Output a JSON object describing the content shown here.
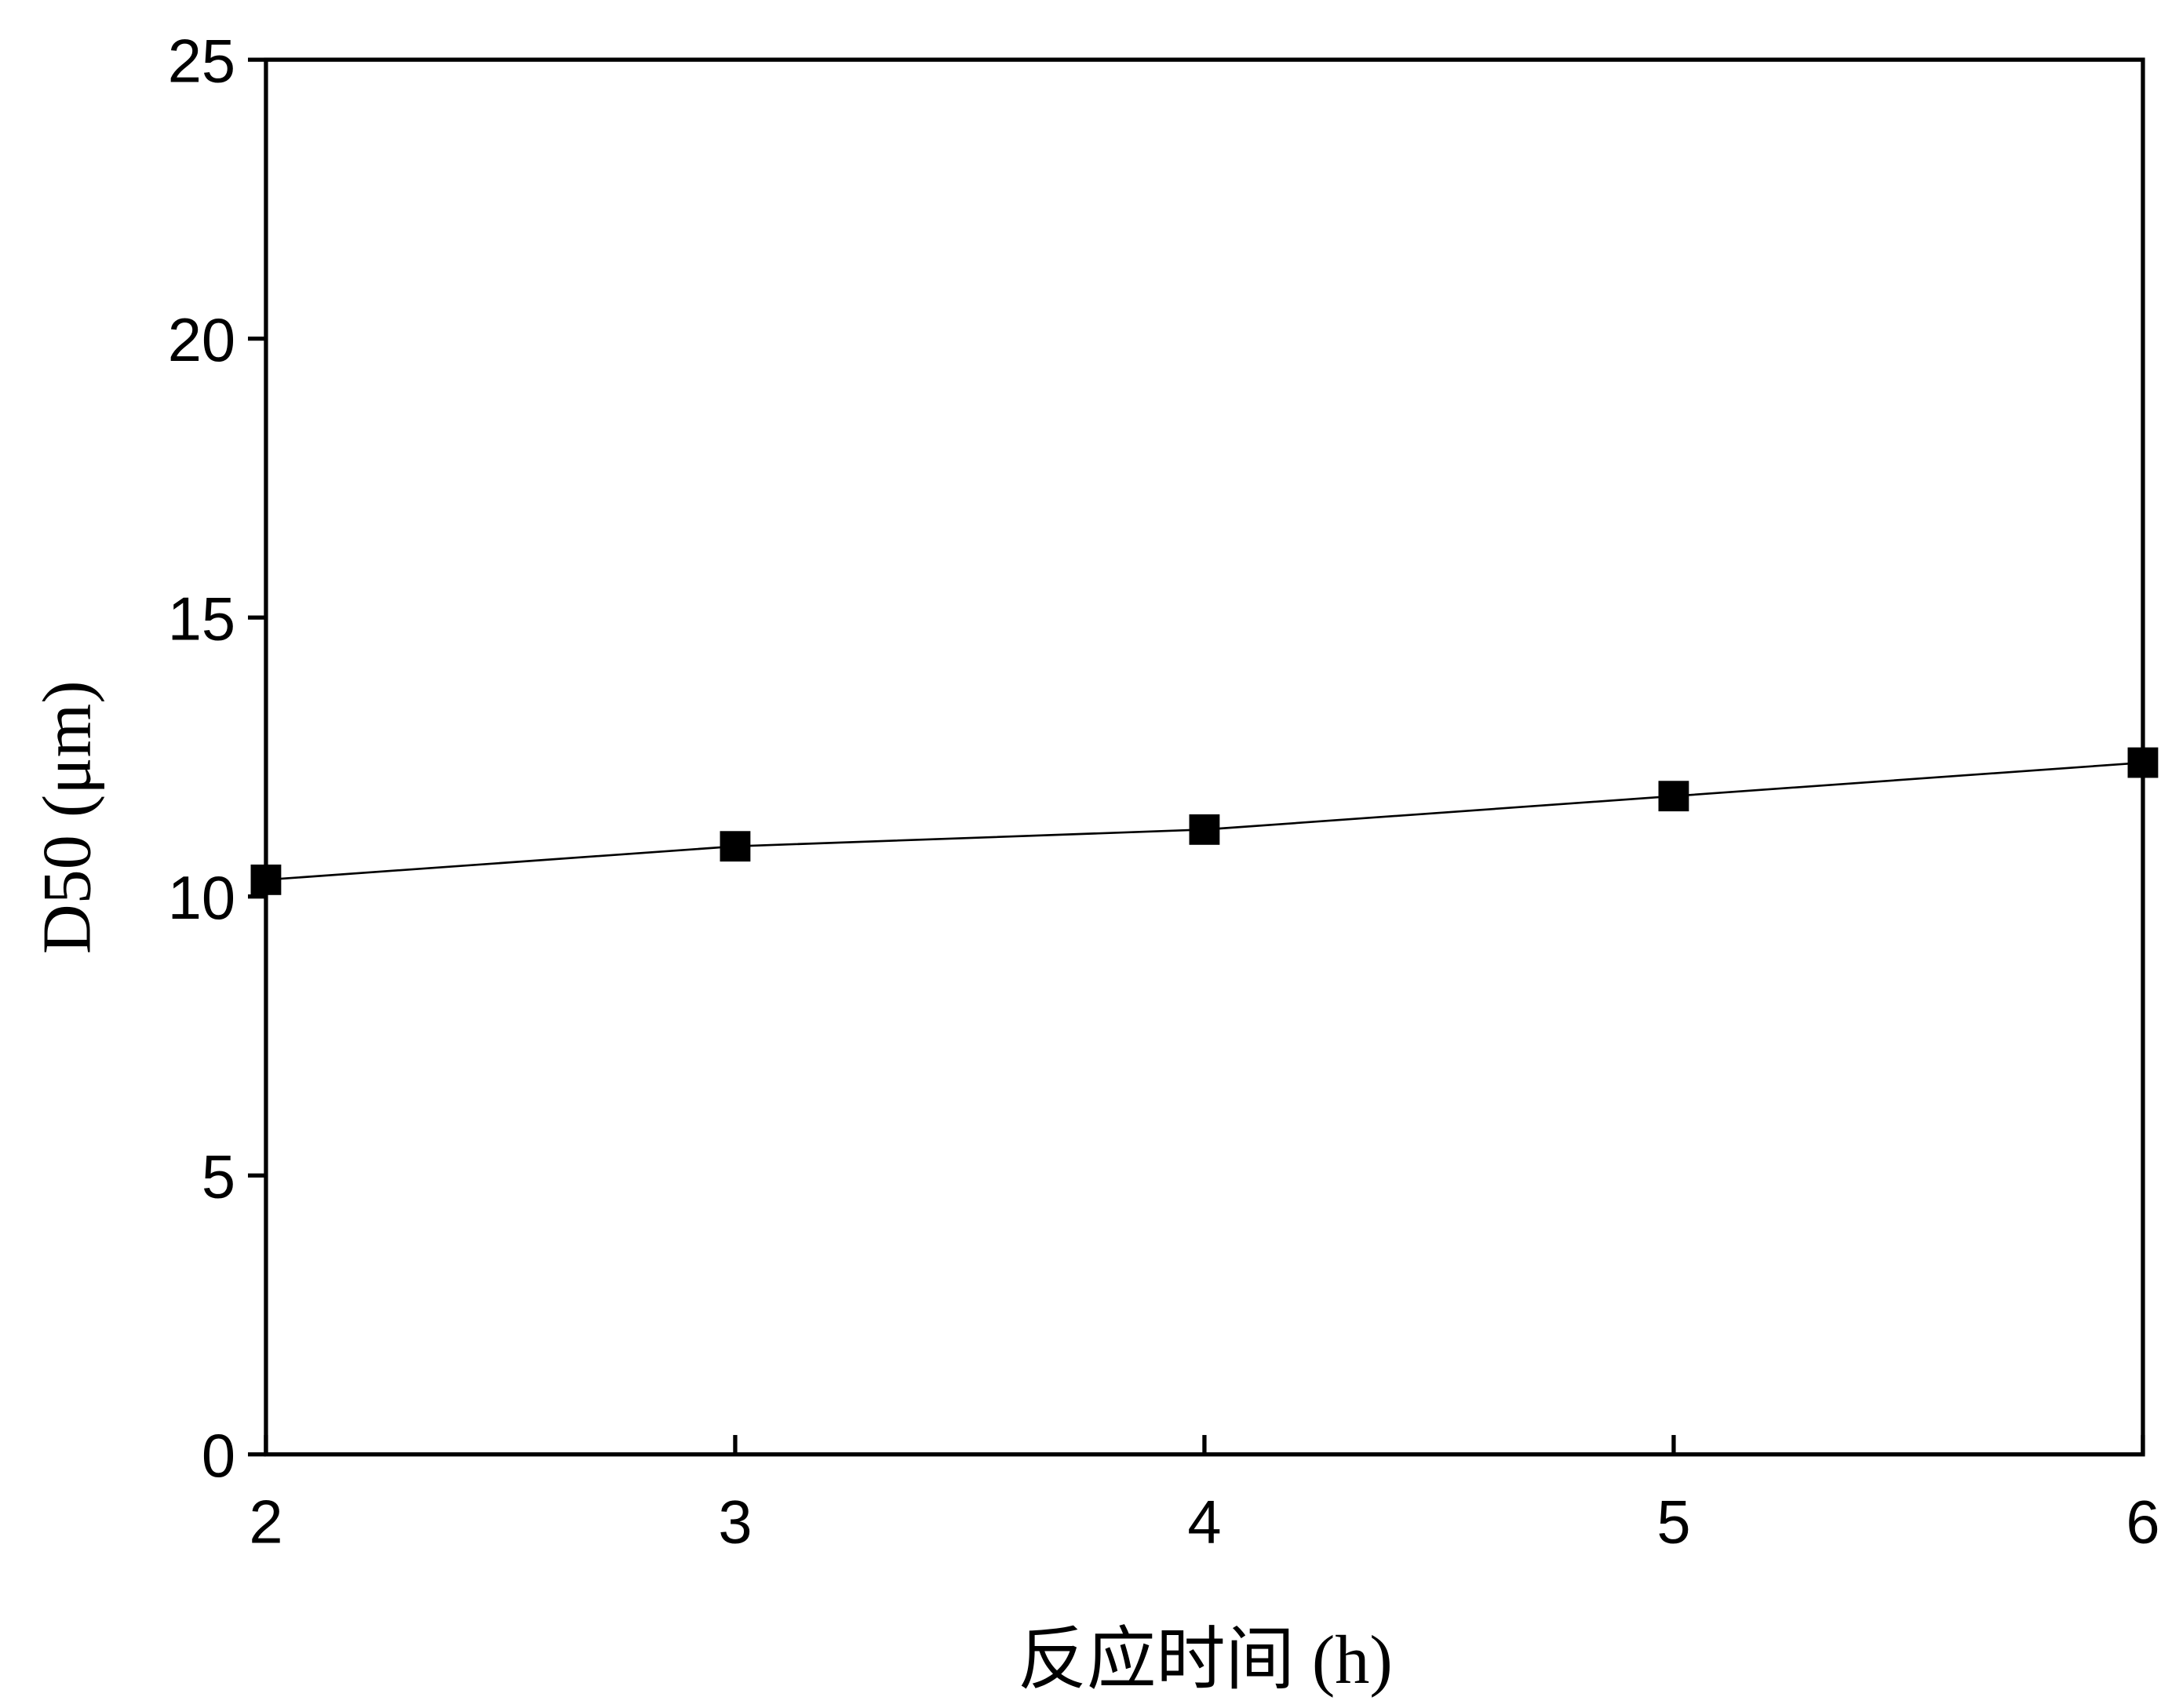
{
  "chart_data": {
    "type": "line",
    "x_label": "反应时间 (h)",
    "y_label": "D50 (μm)",
    "x": [
      2,
      3,
      4,
      5,
      6
    ],
    "series": [
      {
        "color": "#000000",
        "values": [
          10.3,
          10.9,
          11.2,
          11.8,
          12.4
        ]
      }
    ],
    "xlim": [
      2,
      6
    ],
    "xticks": [
      2,
      3,
      4,
      5,
      6
    ],
    "ylim": [
      0,
      25
    ],
    "yticks": [
      0,
      5,
      10,
      15,
      20,
      25
    ],
    "grid": false
  }
}
